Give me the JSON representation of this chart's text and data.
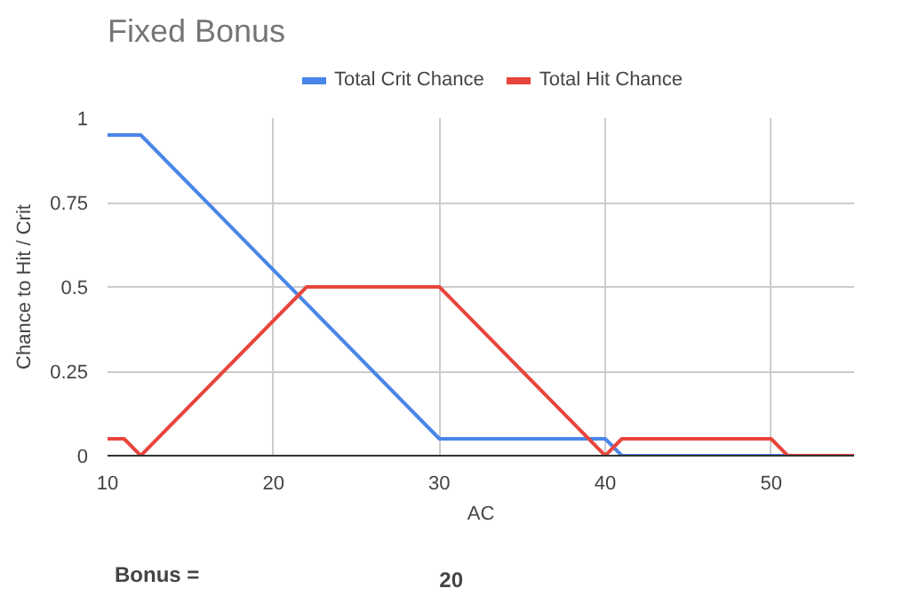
{
  "chart_data": {
    "type": "line",
    "title": "Fixed Bonus",
    "xlabel": "AC",
    "ylabel": "Chance to Hit / Crit",
    "series": [
      {
        "name": "Total Crit Chance",
        "color": "#4a86e8",
        "x": [
          10,
          12,
          30,
          40,
          41,
          55
        ],
        "values": [
          0.95,
          0.95,
          0.05,
          0.05,
          0,
          0
        ]
      },
      {
        "name": "Total Hit Chance",
        "color": "#e8453c",
        "x": [
          10,
          11,
          12,
          22,
          30,
          40,
          41,
          50,
          51,
          55
        ],
        "values": [
          0.05,
          0.05,
          0,
          0.5,
          0.5,
          0,
          0.05,
          0.05,
          0,
          0
        ]
      }
    ],
    "xlim": [
      10,
      55
    ],
    "xticks": [
      10,
      20,
      30,
      40,
      50
    ],
    "ylim": [
      0,
      1
    ],
    "yticks": [
      0,
      {
        "value": 0.25,
        "label": "0.25"
      },
      {
        "value": 0.5,
        "label": "0.5"
      },
      {
        "value": 0.75,
        "label": "0.75"
      },
      1
    ],
    "grid": true,
    "legend": "top",
    "line_style": "solid",
    "annotations": [
      "Bonus =",
      "20"
    ]
  }
}
